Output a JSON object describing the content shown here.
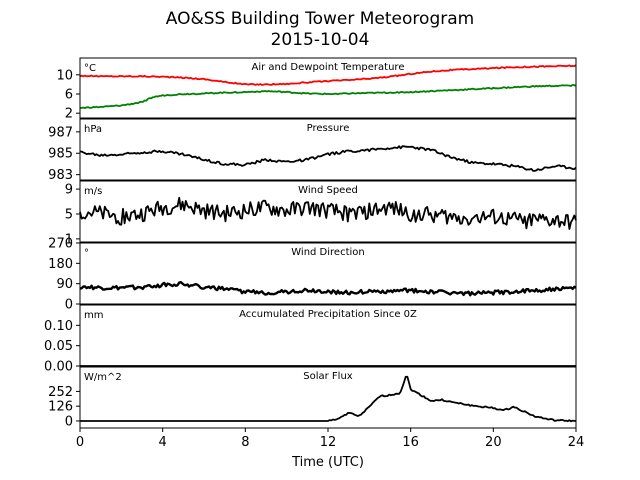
{
  "title": "AO&SS Building Tower Meteorogram",
  "date": "2015-10-04",
  "chart_data": {
    "type": "line",
    "xlabel": "Time (UTC)",
    "x_ticks": [
      "0",
      "4",
      "8",
      "12",
      "16",
      "20",
      "24"
    ],
    "xlim": [
      0,
      24
    ],
    "panels": [
      {
        "title": "Air and Dewpoint Temperature",
        "unit": "°C",
        "ylim": [
          1,
          13.5
        ],
        "y_ticks": [
          "2",
          "6",
          "10"
        ],
        "y_tick_values": [
          2,
          6,
          10
        ],
        "series": [
          {
            "color": "#ff0000",
            "x": [
              0,
              1,
              2,
              3,
              4,
              5,
              6,
              7,
              8,
              9,
              10,
              11,
              12,
              13,
              14,
              15,
              16,
              17,
              18,
              19,
              20,
              21,
              22,
              23,
              24
            ],
            "values": [
              9.8,
              9.7,
              9.7,
              9.7,
              9.6,
              9.4,
              9.1,
              8.5,
              8.0,
              8.0,
              8.1,
              8.4,
              8.7,
              8.9,
              9.2,
              9.6,
              10.2,
              10.7,
              11.0,
              11.2,
              11.4,
              11.6,
              11.7,
              11.8,
              11.9
            ]
          },
          {
            "color": "#008000",
            "x": [
              0,
              1,
              2,
              3,
              3.5,
              4,
              5,
              6,
              7,
              8,
              9,
              10,
              11,
              12,
              13,
              14,
              15,
              16,
              17,
              18,
              19,
              20,
              21,
              22,
              23,
              24
            ],
            "values": [
              3.1,
              3.3,
              3.6,
              4.3,
              5.3,
              5.7,
              6.0,
              6.1,
              6.3,
              6.4,
              6.6,
              6.4,
              6.1,
              6.0,
              6.1,
              6.2,
              6.3,
              6.4,
              6.6,
              6.8,
              7.0,
              7.2,
              7.4,
              7.6,
              7.7,
              7.8
            ]
          }
        ]
      },
      {
        "title": "Pressure",
        "unit": "hPa",
        "ylim": [
          982.5,
          988.2
        ],
        "y_ticks": [
          "983",
          "985",
          "987"
        ],
        "y_tick_values": [
          983,
          985,
          987
        ],
        "series": [
          {
            "color": "#000000",
            "x": [
              0,
              1,
              2,
              3,
              4,
              5,
              6,
              7,
              8,
              9,
              10,
              11,
              12,
              13,
              14,
              15,
              16,
              17,
              18,
              19,
              20,
              21,
              22,
              23,
              24
            ],
            "values": [
              985.1,
              984.8,
              984.9,
              985.1,
              985.2,
              984.9,
              984.4,
              984.0,
              983.9,
              984.4,
              984.2,
              984.4,
              984.9,
              985.2,
              985.3,
              985.5,
              985.6,
              985.3,
              984.6,
              984.1,
              984.0,
              983.8,
              983.4,
              983.8,
              983.6
            ]
          }
        ]
      },
      {
        "title": "Wind Speed",
        "unit": "m/s",
        "ylim": [
          0.5,
          10.3
        ],
        "y_ticks": [
          "1",
          "5",
          "9"
        ],
        "y_tick_values": [
          1,
          5,
          9
        ],
        "series": [
          {
            "color": "#000000",
            "x": [
              0,
              1,
              2,
              3,
              4,
              5,
              6,
              7,
              8,
              9,
              10,
              11,
              12,
              13,
              14,
              15,
              16,
              17,
              18,
              19,
              20,
              21,
              22,
              23,
              24
            ],
            "values": [
              5.5,
              5.0,
              4.5,
              5.0,
              6.0,
              6.5,
              5.5,
              5.0,
              5.5,
              6.0,
              5.5,
              6.0,
              5.5,
              5.0,
              5.5,
              6.0,
              5.0,
              5.0,
              4.5,
              4.5,
              4.5,
              4.0,
              4.0,
              4.0,
              3.5
            ]
          }
        ]
      },
      {
        "title": "Wind Direction",
        "unit": "°",
        "ylim": [
          0,
          270
        ],
        "y_ticks": [
          "0",
          "90",
          "180",
          "270"
        ],
        "y_tick_values": [
          0,
          90,
          180,
          270
        ],
        "series": [
          {
            "color": "#000000",
            "x": [
              0,
              1,
              2,
              3,
              4,
              5,
              6,
              7,
              8,
              9,
              10,
              11,
              12,
              13,
              14,
              15,
              16,
              17,
              18,
              19,
              20,
              21,
              22,
              23,
              24
            ],
            "values": [
              75,
              70,
              70,
              75,
              85,
              90,
              75,
              65,
              55,
              50,
              55,
              60,
              55,
              50,
              55,
              55,
              60,
              55,
              50,
              45,
              50,
              55,
              60,
              65,
              70
            ]
          }
        ]
      },
      {
        "title": "Accumulated Precipitation Since 0Z",
        "unit": "mm",
        "ylim": [
          0,
          0.15
        ],
        "y_ticks": [
          "0.00",
          "0.05",
          "0.10"
        ],
        "y_tick_values": [
          0,
          0.05,
          0.1
        ],
        "series": [
          {
            "color": "#000000",
            "x": [
              0,
              24
            ],
            "values": [
              0,
              0
            ]
          }
        ]
      },
      {
        "title": "Solar Flux",
        "unit": "W/m^2",
        "ylim": [
          -60,
          460
        ],
        "y_ticks": [
          "0",
          "126",
          "252"
        ],
        "y_tick_values": [
          0,
          126,
          252
        ],
        "series": [
          {
            "color": "#000000",
            "x": [
              0,
              10,
              12,
              12.5,
              13,
              13.5,
              14,
              14.5,
              15,
              15.5,
              15.8,
              16,
              16.5,
              17,
              17.5,
              18,
              19,
              20,
              20.5,
              21,
              21.5,
              22,
              22.5,
              23,
              24
            ],
            "values": [
              0,
              0,
              0,
              20,
              70,
              40,
              120,
              210,
              220,
              240,
              400,
              270,
              220,
              170,
              180,
              160,
              130,
              110,
              90,
              120,
              80,
              40,
              20,
              5,
              0
            ]
          }
        ]
      }
    ]
  }
}
